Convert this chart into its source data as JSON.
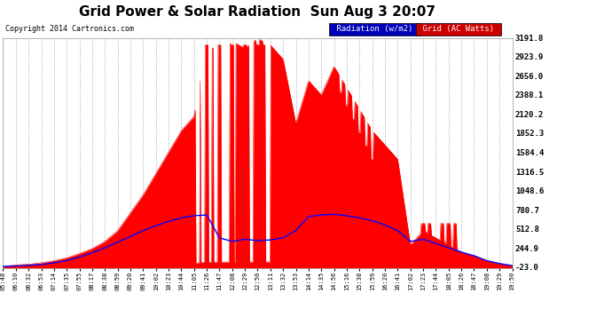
{
  "title": "Grid Power & Solar Radiation  Sun Aug 3 20:07",
  "copyright": "Copyright 2014 Cartronics.com",
  "bg_color": "#ffffff",
  "y_min": -23.0,
  "y_max": 3191.8,
  "y_ticks": [
    -23.0,
    244.9,
    512.8,
    780.7,
    1048.6,
    1316.5,
    1584.4,
    1852.3,
    2120.2,
    2388.1,
    2656.0,
    2923.9,
    3191.8
  ],
  "x_labels": [
    "05:48",
    "06:10",
    "06:32",
    "06:53",
    "07:14",
    "07:35",
    "07:55",
    "08:17",
    "08:38",
    "08:59",
    "09:20",
    "09:41",
    "10:02",
    "10:23",
    "10:44",
    "11:05",
    "11:26",
    "11:47",
    "12:08",
    "12:29",
    "12:50",
    "13:11",
    "13:32",
    "13:53",
    "14:14",
    "14:35",
    "14:56",
    "15:16",
    "15:38",
    "15:59",
    "16:20",
    "16:41",
    "17:02",
    "17:23",
    "17:44",
    "18:05",
    "18:26",
    "18:47",
    "19:08",
    "19:29",
    "19:50"
  ],
  "legend_radiation_label": "Radiation (w/m2)",
  "legend_grid_label": "Grid (AC Watts)",
  "radiation_color": "#0000ff",
  "grid_fill_color": "#ff0000",
  "radiation_legend_bg": "#0000bb",
  "grid_legend_bg": "#cc0000",
  "grid_line_color": "#cccccc",
  "spine_color": "#999999"
}
